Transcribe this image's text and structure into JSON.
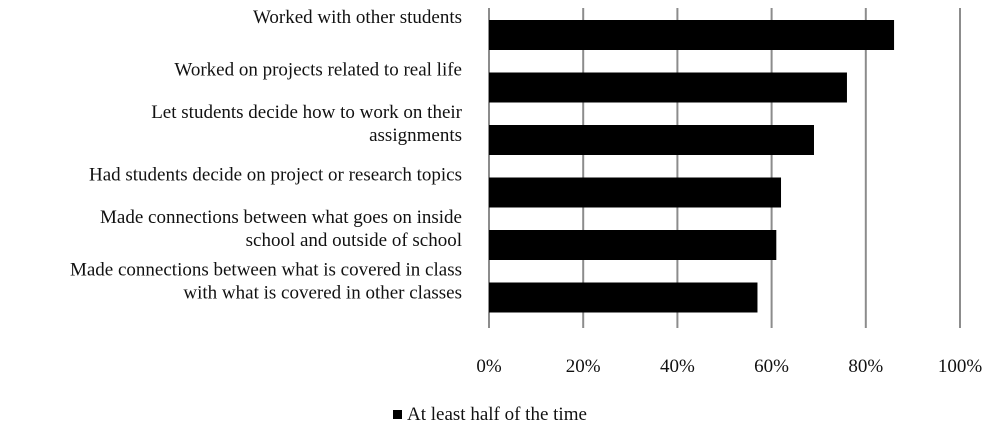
{
  "chart_data": {
    "type": "bar",
    "orientation": "horizontal",
    "categories": [
      [
        "Worked with other students"
      ],
      [
        "Worked on projects related to real life"
      ],
      [
        "Let students decide how to work on their",
        "assignments"
      ],
      [
        "Had students decide on project or research topics"
      ],
      [
        "Made connections between what goes on inside",
        "school and outside of school"
      ],
      [
        "Made connections between what is covered in class",
        "with what is covered in other classes"
      ]
    ],
    "series": [
      {
        "name": "At least half of the time",
        "values": [
          86,
          76,
          69,
          62,
          61,
          57
        ],
        "color": "#000000"
      }
    ],
    "x_ticks": [
      "0%",
      "20%",
      "40%",
      "60%",
      "80%",
      "100%"
    ],
    "xlim": [
      0,
      100
    ],
    "grid": "vertical",
    "grid_color": "#8c8c8c",
    "legend": "bottom-center"
  }
}
